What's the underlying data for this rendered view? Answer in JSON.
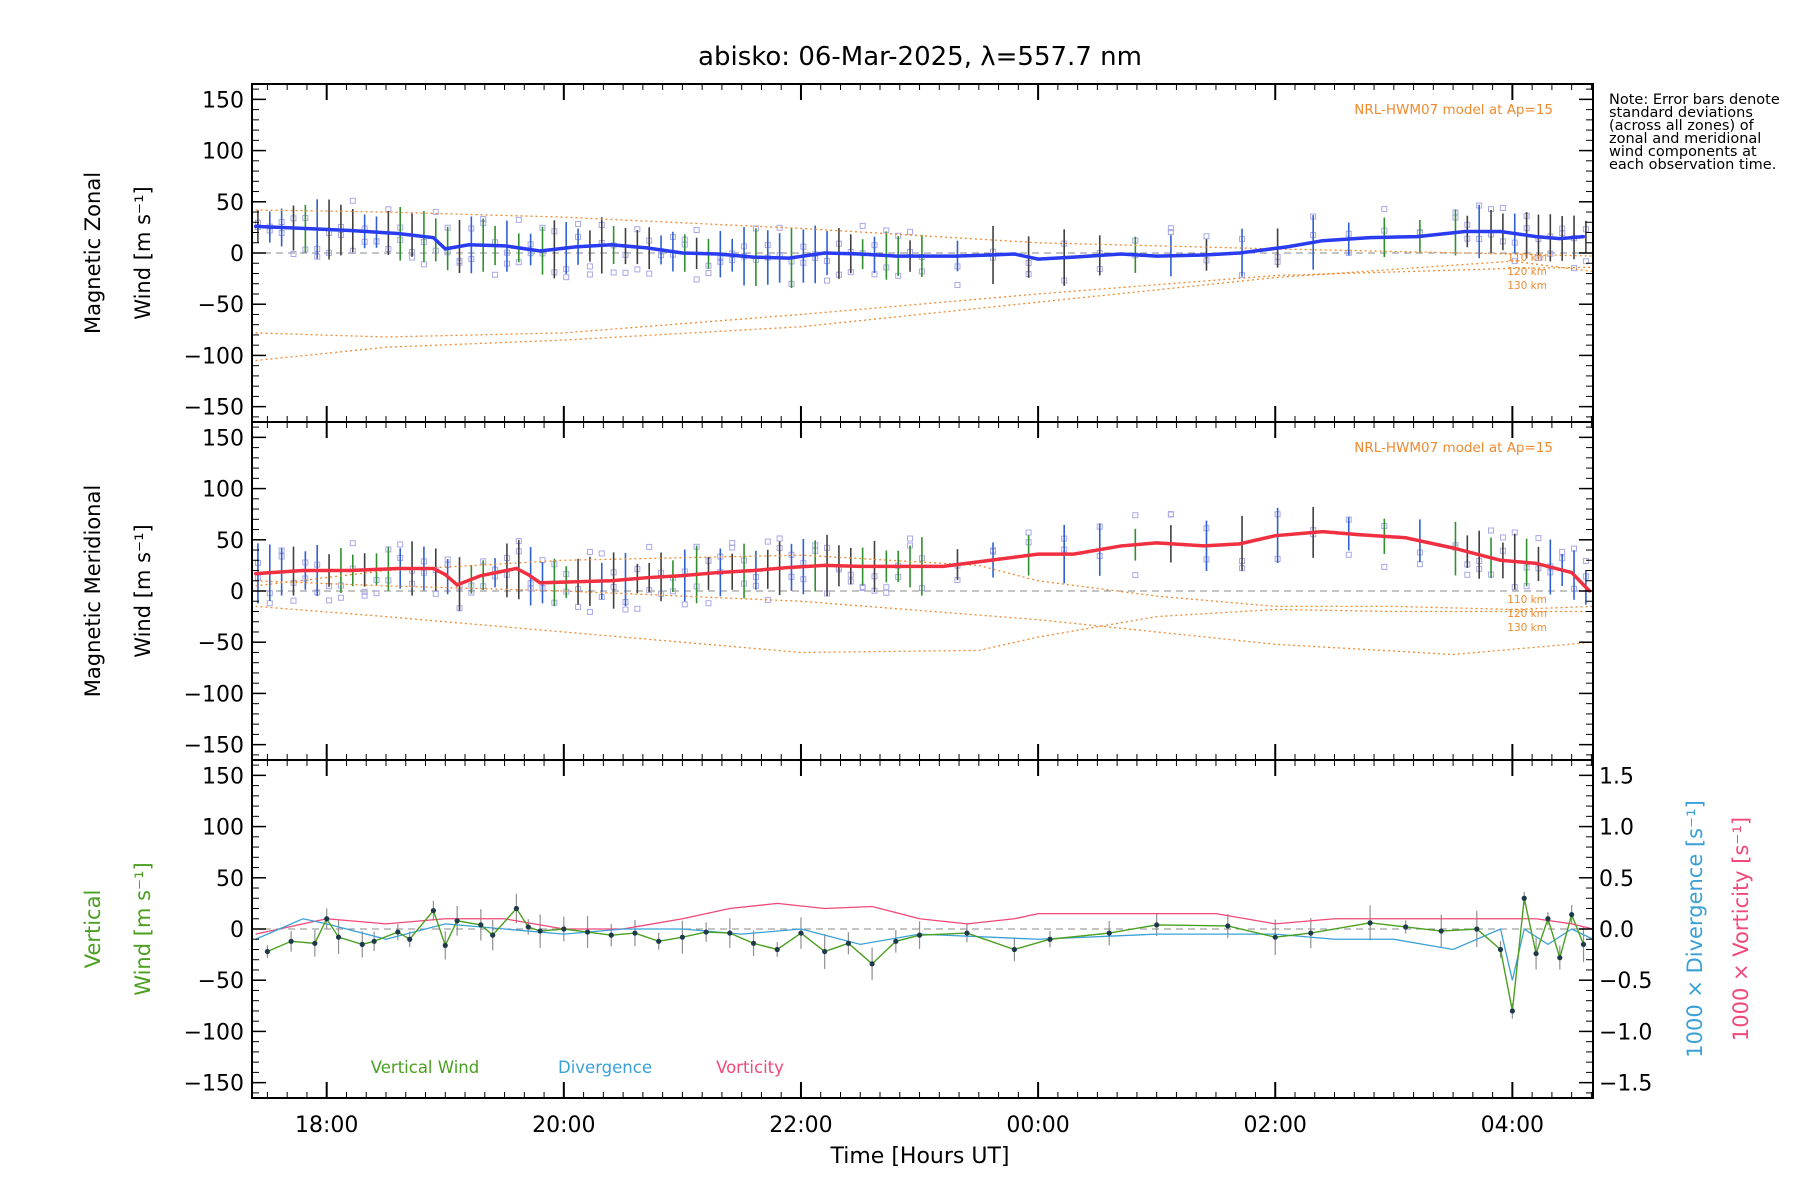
{
  "title": "abisko: 06-Mar-2025, λ=557.7 nm",
  "note": "Note: Error bars denote standard deviations (across all zones) of zonal and meridional wind components at each observation time.",
  "xlabel": "Time [Hours UT]",
  "x_ticks": [
    "18:00",
    "20:00",
    "22:00",
    "00:00",
    "02:00",
    "04:00"
  ],
  "colors": {
    "zonal": "#2a3cf0",
    "meridional": "#f03040",
    "vertical": "#4aa020",
    "divergence": "#3aa0d8",
    "vorticity": "#f04878",
    "model": "#f08a30",
    "scatter": "#a8a8e8",
    "errorbar_dark": "#404040",
    "errorbar_green": "#309030",
    "errorbar_blue": "#3060d0",
    "zero_line": "#888888"
  },
  "panels": {
    "zonal": {
      "ylabel_line1": "Magnetic Zonal",
      "ylabel_line2": "Wind [m s⁻¹]",
      "model_label": "NRL-HWM07 model at Ap=15",
      "alt_labels": [
        "110 km",
        "120 km",
        "130 km"
      ]
    },
    "meridional": {
      "ylabel_line1": "Magnetic Meridional",
      "ylabel_line2": "Wind [m s⁻¹]",
      "model_label": "NRL-HWM07 model at Ap=15",
      "alt_labels": [
        "110 km",
        "120 km",
        "130 km"
      ]
    },
    "vertical": {
      "ylabel_line1": "Vertical",
      "ylabel_line2": "Wind [m s⁻¹]",
      "right_label_divergence": "1000 × Divergence [s⁻¹]",
      "right_label_vorticity": "1000 × Vorticity [s⁻¹]",
      "right_ticks": [
        "1.5",
        "1.0",
        "0.5",
        "0.0",
        "−0.5",
        "−1.0",
        "−1.5"
      ],
      "legend": [
        "Vertical Wind",
        "Divergence",
        "Vorticity"
      ]
    }
  },
  "chart_data": [
    {
      "type": "line",
      "panel": "Magnetic Zonal Wind",
      "x_unit": "hours UT since 06-Mar-2025 00:00",
      "xlim": [
        17.37,
        28.68
      ],
      "ylim": [
        -165,
        165
      ],
      "y_ticks": [
        150,
        100,
        50,
        0,
        -50,
        -100,
        -150
      ],
      "series": [
        {
          "role": "zonal-wind",
          "x": [
            17.4,
            17.8,
            18.2,
            18.6,
            18.9,
            19.0,
            19.2,
            19.5,
            19.8,
            20.1,
            20.4,
            20.7,
            21.0,
            21.3,
            21.6,
            21.9,
            22.2,
            22.5,
            22.8,
            23.0,
            23.3,
            23.6,
            23.8,
            24.0,
            24.3,
            24.7,
            25.0,
            25.4,
            25.7,
            26.1,
            26.4,
            26.8,
            27.2,
            27.6,
            27.9,
            28.2,
            28.4,
            28.6
          ],
          "values": [
            26,
            24,
            22,
            19,
            15,
            4,
            8,
            7,
            2,
            6,
            8,
            5,
            0,
            -1,
            -4,
            -5,
            0,
            -1,
            -3,
            -3,
            -3,
            -2,
            -1,
            -6,
            -4,
            -1,
            -3,
            -2,
            0,
            6,
            12,
            15,
            16,
            21,
            21,
            16,
            14,
            16
          ]
        },
        {
          "role": "model-110km",
          "x": [
            17.4,
            18.5,
            20,
            22,
            24,
            26,
            28,
            28.68
          ],
          "values": [
            42,
            40,
            35,
            24,
            10,
            4,
            -1,
            -3
          ]
        },
        {
          "role": "model-120km",
          "x": [
            17.4,
            18.5,
            20,
            22,
            24,
            26,
            28,
            28.68
          ],
          "values": [
            -78,
            -82,
            -78,
            -60,
            -40,
            -22,
            -15,
            -14
          ]
        },
        {
          "role": "model-130km",
          "x": [
            17.4,
            18.5,
            20,
            22,
            24,
            26,
            28,
            28.68
          ],
          "values": [
            -105,
            -92,
            -85,
            -72,
            -48,
            -24,
            -8,
            -18
          ]
        }
      ]
    },
    {
      "type": "line",
      "panel": "Magnetic Meridional Wind",
      "x_unit": "hours UT since 06-Mar-2025 00:00",
      "xlim": [
        17.37,
        28.68
      ],
      "ylim": [
        -165,
        165
      ],
      "y_ticks": [
        150,
        100,
        50,
        0,
        -50,
        -100,
        -150
      ],
      "series": [
        {
          "role": "meridional-wind",
          "x": [
            17.4,
            17.8,
            18.2,
            18.6,
            18.9,
            19.0,
            19.1,
            19.3,
            19.6,
            19.7,
            19.8,
            20.1,
            20.4,
            20.7,
            21.0,
            21.3,
            21.6,
            21.9,
            22.2,
            22.5,
            22.8,
            23.2,
            23.6,
            24.0,
            24.3,
            24.7,
            25.0,
            25.4,
            25.7,
            26.0,
            26.4,
            26.7,
            27.1,
            27.5,
            27.9,
            28.2,
            28.5,
            28.65
          ],
          "values": [
            17,
            20,
            20,
            22,
            22,
            16,
            6,
            15,
            22,
            16,
            8,
            9,
            10,
            13,
            15,
            18,
            20,
            23,
            25,
            24,
            24,
            24,
            30,
            36,
            36,
            44,
            47,
            44,
            46,
            54,
            58,
            55,
            52,
            42,
            30,
            27,
            18,
            0
          ]
        },
        {
          "role": "model-110km",
          "x": [
            17.4,
            18.5,
            20,
            22,
            23.5,
            24,
            25,
            26,
            27,
            28,
            28.68
          ],
          "values": [
            5,
            20,
            30,
            35,
            25,
            10,
            -5,
            -15,
            -15,
            -18,
            -15
          ]
        },
        {
          "role": "model-120km",
          "x": [
            17.4,
            18.5,
            20,
            22,
            24,
            26,
            27.5,
            28.68
          ],
          "values": [
            10,
            5,
            0,
            -10,
            -28,
            -52,
            -62,
            -50
          ]
        },
        {
          "role": "model-130km",
          "x": [
            17.4,
            18.5,
            20,
            22,
            23.5,
            24,
            25,
            26,
            27,
            28,
            28.68
          ],
          "values": [
            -15,
            -25,
            -40,
            -60,
            -58,
            -45,
            -25,
            -18,
            -20,
            -20,
            -20
          ]
        }
      ]
    },
    {
      "type": "line",
      "panel": "Vertical Wind",
      "x_unit": "hours UT since 06-Mar-2025 00:00",
      "xlim": [
        17.37,
        28.68
      ],
      "ylim": [
        -165,
        165
      ],
      "y_ticks": [
        150,
        100,
        50,
        0,
        -50,
        -100,
        -150
      ],
      "right_axis": {
        "label": "1000 × Divergence / Vorticity [s⁻¹]",
        "ylim": [
          -1.65,
          1.65
        ]
      },
      "series": [
        {
          "name": "Vertical Wind",
          "axis": "left",
          "x": [
            17.5,
            17.7,
            17.9,
            18.0,
            18.1,
            18.3,
            18.4,
            18.6,
            18.7,
            18.9,
            19.0,
            19.1,
            19.3,
            19.4,
            19.6,
            19.7,
            19.8,
            20.0,
            20.2,
            20.4,
            20.6,
            20.8,
            21.0,
            21.2,
            21.4,
            21.6,
            21.8,
            22.0,
            22.2,
            22.4,
            22.6,
            22.8,
            23.0,
            23.4,
            23.8,
            24.1,
            24.6,
            25.0,
            25.6,
            26.0,
            26.3,
            26.8,
            27.1,
            27.4,
            27.7,
            27.9,
            28.0,
            28.1,
            28.2,
            28.3,
            28.4,
            28.5,
            28.6
          ],
          "values": [
            -22,
            -12,
            -14,
            10,
            -8,
            -15,
            -12,
            -3,
            -10,
            18,
            -16,
            8,
            4,
            -6,
            20,
            2,
            -2,
            0,
            -3,
            -6,
            -4,
            -12,
            -8,
            -3,
            -4,
            -14,
            -20,
            -4,
            -22,
            -14,
            -34,
            -12,
            -6,
            -4,
            -20,
            -10,
            -4,
            4,
            3,
            -8,
            -4,
            6,
            2,
            -2,
            0,
            -20,
            -80,
            30,
            -24,
            10,
            -28,
            14,
            -15
          ]
        },
        {
          "name": "Divergence",
          "axis": "right",
          "x": [
            17.4,
            17.8,
            18.0,
            18.5,
            19.0,
            19.5,
            20.0,
            20.5,
            21.0,
            21.5,
            22.0,
            22.5,
            23.0,
            24.0,
            25.0,
            26.0,
            26.5,
            27.0,
            27.5,
            27.9,
            28.0,
            28.1,
            28.3,
            28.5,
            28.68
          ],
          "values": [
            -0.1,
            0.1,
            0.05,
            -0.1,
            0.05,
            0.0,
            -0.05,
            0.0,
            0.0,
            -0.05,
            0.0,
            -0.15,
            -0.05,
            -0.1,
            -0.05,
            -0.05,
            -0.1,
            -0.1,
            -0.2,
            0.0,
            -0.5,
            0.0,
            -0.15,
            0.0,
            -0.1
          ]
        },
        {
          "name": "Vorticity",
          "axis": "right",
          "x": [
            17.4,
            17.8,
            18.0,
            18.5,
            19.0,
            19.5,
            20.0,
            20.5,
            21.0,
            21.4,
            21.8,
            22.2,
            22.6,
            23.0,
            23.4,
            23.8,
            24.0,
            24.6,
            25.5,
            26.0,
            26.5,
            27.0,
            27.5,
            27.9,
            28.2,
            28.5,
            28.68
          ],
          "values": [
            -0.05,
            0.05,
            0.1,
            0.05,
            0.1,
            0.1,
            0.0,
            0.0,
            0.1,
            0.2,
            0.25,
            0.2,
            0.22,
            0.1,
            0.05,
            0.1,
            0.15,
            0.15,
            0.15,
            0.05,
            0.1,
            0.1,
            0.1,
            0.1,
            0.1,
            0.05,
            0.0
          ]
        }
      ]
    }
  ]
}
